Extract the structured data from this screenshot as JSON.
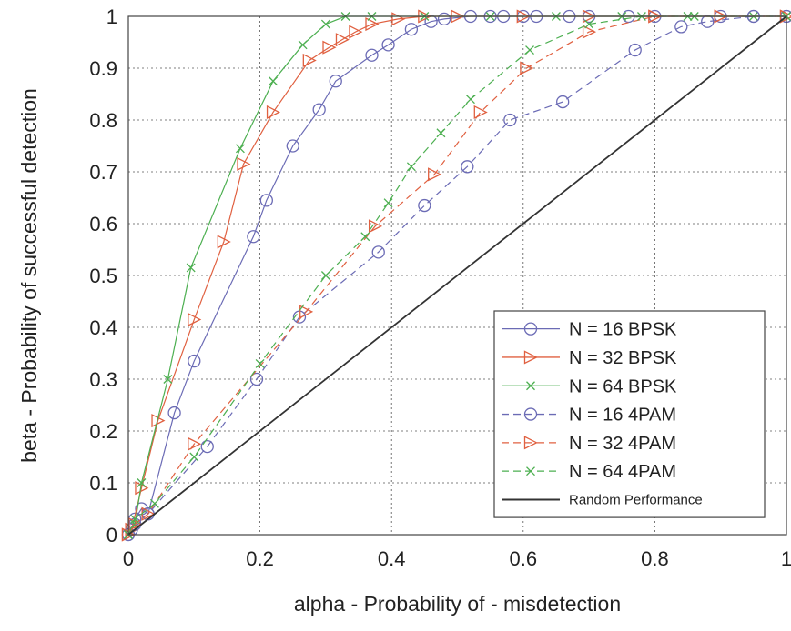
{
  "chart_data": {
    "type": "line",
    "title": "",
    "xlabel": "alpha - Probability of - misdetection",
    "ylabel": "beta - Probability of successful detection",
    "xlim": [
      0,
      1
    ],
    "ylim": [
      0,
      1
    ],
    "xticks": [
      "0",
      "0.2",
      "0.4",
      "0.6",
      "0.8",
      "1"
    ],
    "yticks": [
      "0",
      "0.1",
      "0.2",
      "0.3",
      "0.4",
      "0.5",
      "0.6",
      "0.7",
      "0.8",
      "0.9",
      "1"
    ],
    "grid": true,
    "legend_position": "bottom-right",
    "series": [
      {
        "name": "N = 16 BPSK",
        "color": "#6b6bb5",
        "marker": "circle",
        "dash": "solid",
        "x": [
          0,
          0.005,
          0.01,
          0.02,
          0.03,
          0.07,
          0.1,
          0.19,
          0.21,
          0.25,
          0.29,
          0.315,
          0.37,
          0.395,
          0.43,
          0.46,
          0.48,
          0.52,
          0.55,
          0.57,
          0.6,
          0.62,
          0.67,
          0.7,
          0.76,
          0.8,
          0.9,
          0.95,
          1.0
        ],
        "y": [
          0,
          0.01,
          0.03,
          0.05,
          0.04,
          0.235,
          0.335,
          0.575,
          0.645,
          0.75,
          0.82,
          0.875,
          0.925,
          0.945,
          0.975,
          0.99,
          0.995,
          1.0,
          1.0,
          1.0,
          1.0,
          1.0,
          1.0,
          1.0,
          1.0,
          1.0,
          1.0,
          1.0,
          1.0
        ]
      },
      {
        "name": "N = 32 BPSK",
        "color": "#e06040",
        "marker": "triangle-right",
        "dash": "solid",
        "x": [
          0,
          0.005,
          0.02,
          0.045,
          0.1,
          0.145,
          0.175,
          0.22,
          0.275,
          0.305,
          0.325,
          0.345,
          0.37,
          0.41,
          0.45,
          0.5,
          0.6,
          0.7,
          0.8,
          0.9,
          1.0
        ],
        "y": [
          0,
          0.01,
          0.09,
          0.22,
          0.415,
          0.565,
          0.715,
          0.815,
          0.915,
          0.94,
          0.955,
          0.97,
          0.985,
          0.995,
          1.0,
          1.0,
          1.0,
          1.0,
          1.0,
          1.0,
          1.0
        ]
      },
      {
        "name": "N = 64 BPSK",
        "color": "#4caf50",
        "marker": "x",
        "dash": "solid",
        "x": [
          0,
          0.01,
          0.02,
          0.06,
          0.095,
          0.17,
          0.22,
          0.265,
          0.3,
          0.33,
          0.37,
          0.45,
          0.55,
          0.65,
          0.75,
          0.85,
          0.95,
          1.0
        ],
        "y": [
          0,
          0.02,
          0.1,
          0.3,
          0.515,
          0.745,
          0.875,
          0.945,
          0.985,
          1.0,
          1.0,
          1.0,
          1.0,
          1.0,
          1.0,
          1.0,
          1.0,
          1.0
        ]
      },
      {
        "name": "N = 16 4PAM",
        "color": "#6b6bb5",
        "marker": "circle",
        "dash": "dash",
        "x": [
          0,
          0.01,
          0.03,
          0.12,
          0.195,
          0.26,
          0.38,
          0.45,
          0.515,
          0.58,
          0.66,
          0.77,
          0.84,
          0.88,
          0.95,
          1.0
        ],
        "y": [
          0,
          0.02,
          0.04,
          0.17,
          0.3,
          0.42,
          0.545,
          0.635,
          0.71,
          0.8,
          0.835,
          0.935,
          0.98,
          0.99,
          1.0,
          1.0
        ]
      },
      {
        "name": "N = 32 4PAM",
        "color": "#e06040",
        "marker": "triangle-right",
        "dash": "dash",
        "x": [
          0,
          0.01,
          0.03,
          0.1,
          0.27,
          0.375,
          0.465,
          0.535,
          0.605,
          0.7,
          0.8,
          0.9,
          1.0
        ],
        "y": [
          0,
          0.02,
          0.04,
          0.175,
          0.43,
          0.595,
          0.695,
          0.815,
          0.9,
          0.97,
          1.0,
          1.0,
          1.0
        ]
      },
      {
        "name": "N = 64 4PAM",
        "color": "#4caf50",
        "marker": "x",
        "dash": "dash",
        "x": [
          0,
          0.01,
          0.04,
          0.1,
          0.2,
          0.3,
          0.36,
          0.395,
          0.43,
          0.475,
          0.52,
          0.61,
          0.7,
          0.78,
          0.86,
          1.0
        ],
        "y": [
          0,
          0.03,
          0.06,
          0.15,
          0.33,
          0.5,
          0.575,
          0.64,
          0.71,
          0.775,
          0.84,
          0.935,
          0.985,
          1.0,
          1.0,
          1.0
        ]
      },
      {
        "name": "Random Performance",
        "color": "#333333",
        "marker": "none",
        "dash": "solid",
        "x": [
          0,
          1
        ],
        "y": [
          0,
          1
        ]
      }
    ]
  }
}
